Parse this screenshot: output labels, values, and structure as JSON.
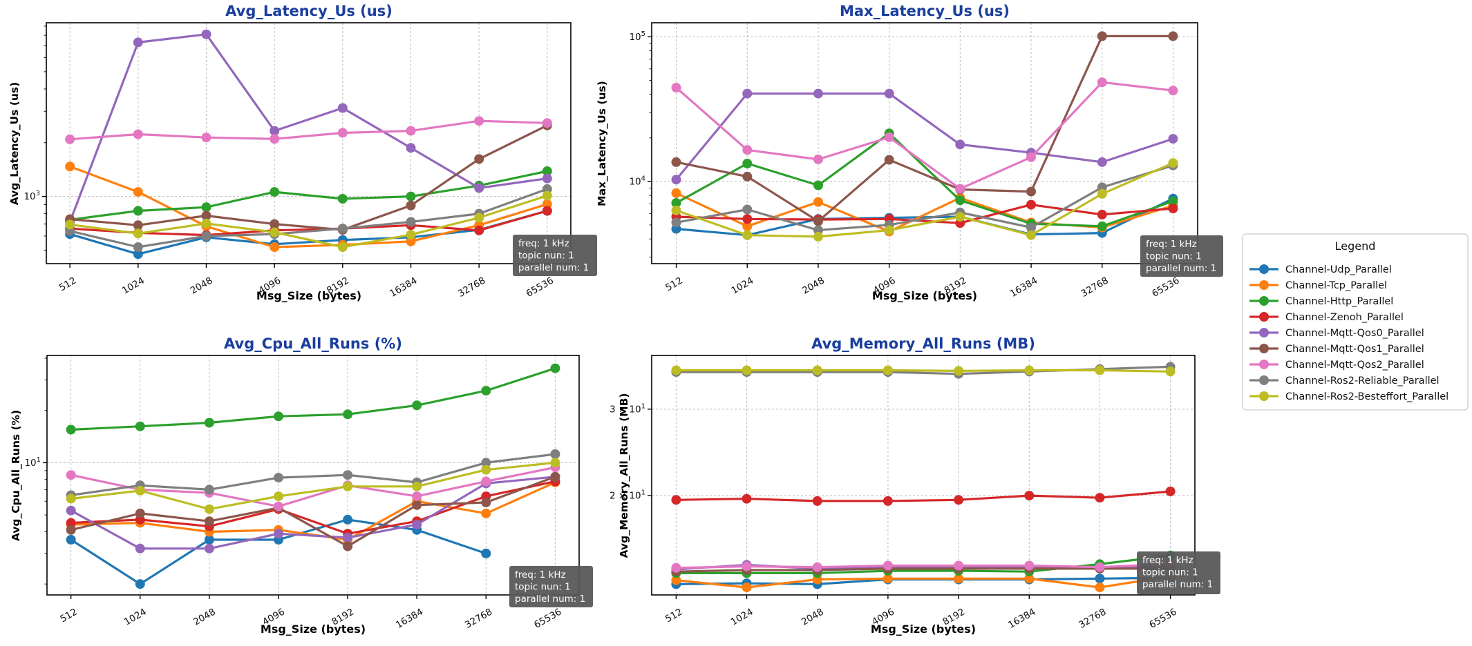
{
  "figure": {
    "background": "#ffffff",
    "title_color": "#1a3e9e",
    "grid_color": "#bbbbbb",
    "spine_color": "#000000"
  },
  "annotation": {
    "lines": [
      "freq: 1 kHz",
      "topic nun: 1",
      "parallel num: 1"
    ],
    "bg": "#58585a",
    "text_color": "#ffffff"
  },
  "legend": {
    "title": "Legend",
    "position": "right-center",
    "items": [
      "Channel-Udp_Parallel",
      "Channel-Tcp_Parallel",
      "Channel-Http_Parallel",
      "Channel-Zenoh_Parallel",
      "Channel-Mqtt-Qos0_Parallel",
      "Channel-Mqtt-Qos1_Parallel",
      "Channel-Mqtt-Qos2_Parallel",
      "Channel-Ros2-Reliable_Parallel",
      "Channel-Ros2-Besteffort_Parallel"
    ]
  },
  "series": [
    {
      "name": "Channel-Udp_Parallel",
      "color": "#1f77b4"
    },
    {
      "name": "Channel-Tcp_Parallel",
      "color": "#ff7f0e"
    },
    {
      "name": "Channel-Http_Parallel",
      "color": "#2ca02c"
    },
    {
      "name": "Channel-Zenoh_Parallel",
      "color": "#d62728"
    },
    {
      "name": "Channel-Mqtt-Qos0_Parallel",
      "color": "#9467bd"
    },
    {
      "name": "Channel-Mqtt-Qos1_Parallel",
      "color": "#8c564b"
    },
    {
      "name": "Channel-Mqtt-Qos2_Parallel",
      "color": "#e377c2"
    },
    {
      "name": "Channel-Ros2-Reliable_Parallel",
      "color": "#7f7f7f"
    },
    {
      "name": "Channel-Ros2-Besteffort_Parallel",
      "color": "#bcbd22"
    }
  ],
  "chart_data": [
    {
      "type": "line",
      "title": "Avg_Latency_Us  (us)",
      "xlabel": "Msg_Size (bytes)",
      "ylabel": "Avg_Latency_Us (us)",
      "x_categories": [
        "512",
        "1024",
        "2048",
        "4096",
        "8192",
        "16384",
        "32768",
        "65536"
      ],
      "log_y": true,
      "ylim": [
        420,
        9400
      ],
      "grid": true,
      "yticks": [
        {
          "value": 1000,
          "base": "10",
          "exp": "3"
        }
      ],
      "series": [
        {
          "name": "Channel-Udp_Parallel",
          "values": [
            615,
            475,
            590,
            540,
            570,
            590,
            650,
            830
          ]
        },
        {
          "name": "Channel-Tcp_Parallel",
          "values": [
            1470,
            1060,
            680,
            520,
            535,
            560,
            690,
            905
          ]
        },
        {
          "name": "Channel-Http_Parallel",
          "values": [
            740,
            830,
            870,
            1060,
            970,
            1000,
            1150,
            1385
          ]
        },
        {
          "name": "Channel-Zenoh_Parallel",
          "values": [
            660,
            625,
            607,
            645,
            660,
            690,
            645,
            830
          ]
        },
        {
          "name": "Channel-Mqtt-Qos0_Parallel",
          "values": [
            720,
            7300,
            8100,
            2330,
            3130,
            1870,
            1115,
            1260
          ]
        },
        {
          "name": "Channel-Mqtt-Qos1_Parallel",
          "values": [
            745,
            690,
            780,
            700,
            650,
            890,
            1620,
            2500
          ]
        },
        {
          "name": "Channel-Mqtt-Qos2_Parallel",
          "values": [
            2090,
            2230,
            2140,
            2100,
            2270,
            2330,
            2650,
            2580
          ]
        },
        {
          "name": "Channel-Ros2-Reliable_Parallel",
          "values": [
            640,
            520,
            600,
            615,
            660,
            720,
            800,
            1100
          ]
        },
        {
          "name": "Channel-Ros2-Besteffort_Parallel",
          "values": [
            695,
            620,
            705,
            630,
            520,
            610,
            760,
            1010
          ]
        }
      ]
    },
    {
      "type": "line",
      "title": "Max_Latency_Us  (us)",
      "xlabel": "Msg_Size (bytes)",
      "ylabel": "Max_Latency_Us (us)",
      "x_categories": [
        "512",
        "1024",
        "2048",
        "4096",
        "8192",
        "16384",
        "32768",
        "65536"
      ],
      "log_y": true,
      "ylim": [
        2700,
        125000
      ],
      "grid": true,
      "yticks": [
        {
          "value": 10000,
          "base": "10",
          "exp": "4"
        },
        {
          "value": 100000,
          "base": "10",
          "exp": "5"
        }
      ],
      "series": [
        {
          "name": "Channel-Udp_Parallel",
          "values": [
            4700,
            4250,
            5500,
            5600,
            5700,
            4300,
            4400,
            7600
          ]
        },
        {
          "name": "Channel-Tcp_Parallel",
          "values": [
            8300,
            4900,
            7200,
            4500,
            7700,
            5200,
            4800,
            6800
          ]
        },
        {
          "name": "Channel-Http_Parallel",
          "values": [
            7100,
            13300,
            9400,
            21500,
            7400,
            5100,
            4900,
            7300
          ]
        },
        {
          "name": "Channel-Zenoh_Parallel",
          "values": [
            5700,
            5500,
            5450,
            5500,
            5150,
            6900,
            5900,
            6500
          ]
        },
        {
          "name": "Channel-Mqtt-Qos0_Parallel",
          "values": [
            10300,
            40500,
            40500,
            40500,
            18000,
            15800,
            13600,
            19700
          ]
        },
        {
          "name": "Channel-Mqtt-Qos1_Parallel",
          "values": [
            13600,
            10800,
            5300,
            14100,
            8800,
            8500,
            101000,
            101000
          ]
        },
        {
          "name": "Channel-Mqtt-Qos2_Parallel",
          "values": [
            44500,
            16500,
            14200,
            20200,
            8900,
            14700,
            48500,
            42500
          ]
        },
        {
          "name": "Channel-Ros2-Reliable_Parallel",
          "values": [
            5200,
            6400,
            4600,
            5000,
            6100,
            4800,
            9100,
            12900
          ]
        },
        {
          "name": "Channel-Ros2-Besteffort_Parallel",
          "values": [
            6300,
            4250,
            4150,
            4600,
            5700,
            4250,
            8200,
            13400
          ]
        }
      ]
    },
    {
      "type": "line",
      "title": "Avg_Cpu_All_Runs  (%)",
      "xlabel": "Msg_Size (bytes)",
      "ylabel": "Avg_Cpu_All_Runs (%)",
      "x_categories": [
        "512",
        "1024",
        "2048",
        "4096",
        "8192",
        "16384",
        "32768",
        "65536"
      ],
      "log_y": true,
      "ylim": [
        1.73,
        41.5
      ],
      "grid": true,
      "yticks": [
        {
          "value": 10,
          "base": "10",
          "exp": "1"
        }
      ],
      "series": [
        {
          "name": "Channel-Udp_Parallel",
          "values": [
            3.6,
            2.0,
            3.6,
            3.6,
            4.7,
            4.1,
            3.0,
            null
          ]
        },
        {
          "name": "Channel-Tcp_Parallel",
          "values": [
            4.4,
            4.5,
            4.0,
            4.1,
            3.6,
            6.0,
            5.1,
            7.7
          ]
        },
        {
          "name": "Channel-Http_Parallel",
          "values": [
            15.5,
            16.2,
            17.0,
            18.5,
            19.0,
            21.4,
            26.0,
            35.0
          ]
        },
        {
          "name": "Channel-Zenoh_Parallel",
          "values": [
            4.5,
            4.7,
            4.3,
            5.4,
            3.9,
            4.6,
            6.4,
            7.8
          ]
        },
        {
          "name": "Channel-Mqtt-Qos0_Parallel",
          "values": [
            5.3,
            3.2,
            3.2,
            3.9,
            3.7,
            4.4,
            7.6,
            8.3
          ]
        },
        {
          "name": "Channel-Mqtt-Qos1_Parallel",
          "values": [
            4.1,
            5.1,
            4.6,
            5.5,
            3.3,
            5.7,
            5.9,
            8.3
          ]
        },
        {
          "name": "Channel-Mqtt-Qos2_Parallel",
          "values": [
            8.5,
            7.0,
            6.7,
            5.6,
            7.4,
            6.4,
            7.8,
            9.4
          ]
        },
        {
          "name": "Channel-Ros2-Reliable_Parallel",
          "values": [
            6.5,
            7.4,
            7.0,
            8.2,
            8.5,
            7.7,
            10.0,
            11.2
          ]
        },
        {
          "name": "Channel-Ros2-Besteffort_Parallel",
          "values": [
            6.2,
            6.9,
            5.4,
            6.4,
            7.3,
            7.3,
            9.1,
            10.0
          ]
        }
      ]
    },
    {
      "type": "line",
      "title": "Avg_Memory_All_Runs  (MB)",
      "xlabel": "Msg_Size (bytes)",
      "ylabel": "Avg_Memory_All_Runs (MB)",
      "x_categories": [
        "512",
        "1024",
        "2048",
        "4096",
        "8192",
        "16384",
        "32768",
        "65536"
      ],
      "log_y": true,
      "ylim": [
        12.55,
        38.6
      ],
      "grid": true,
      "yticks": [
        {
          "value": 20,
          "base": "2 × 10",
          "exp": "1"
        },
        {
          "value": 30,
          "base": "3 × 10",
          "exp": "1"
        }
      ],
      "series": [
        {
          "name": "Channel-Udp_Parallel",
          "values": [
            13.2,
            13.25,
            13.2,
            13.5,
            13.5,
            13.5,
            13.55,
            13.6
          ]
        },
        {
          "name": "Channel-Tcp_Parallel",
          "values": [
            13.45,
            13.0,
            13.5,
            13.55,
            13.55,
            13.55,
            13.0,
            13.7
          ]
        },
        {
          "name": "Channel-Http_Parallel",
          "values": [
            13.9,
            13.9,
            13.9,
            14.05,
            14.05,
            14.0,
            14.5,
            15.1
          ]
        },
        {
          "name": "Channel-Zenoh_Parallel",
          "values": [
            19.6,
            19.7,
            19.5,
            19.5,
            19.6,
            20.0,
            19.8,
            20.4
          ]
        },
        {
          "name": "Channel-Mqtt-Qos0_Parallel",
          "values": [
            14.15,
            14.45,
            14.2,
            14.3,
            14.3,
            14.3,
            14.25,
            14.3
          ]
        },
        {
          "name": "Channel-Mqtt-Qos1_Parallel",
          "values": [
            14.0,
            14.1,
            14.1,
            14.2,
            14.2,
            14.2,
            14.2,
            14.2
          ]
        },
        {
          "name": "Channel-Mqtt-Qos2_Parallel",
          "values": [
            14.25,
            14.35,
            14.3,
            14.4,
            14.4,
            14.4,
            14.3,
            14.5
          ]
        },
        {
          "name": "Channel-Ros2-Reliable_Parallel",
          "values": [
            35.7,
            35.7,
            35.7,
            35.7,
            35.4,
            35.8,
            36.2,
            36.6
          ]
        },
        {
          "name": "Channel-Ros2-Besteffort_Parallel",
          "values": [
            36.0,
            36.0,
            36.0,
            36.0,
            35.9,
            36.0,
            36.0,
            35.8
          ]
        }
      ]
    }
  ]
}
